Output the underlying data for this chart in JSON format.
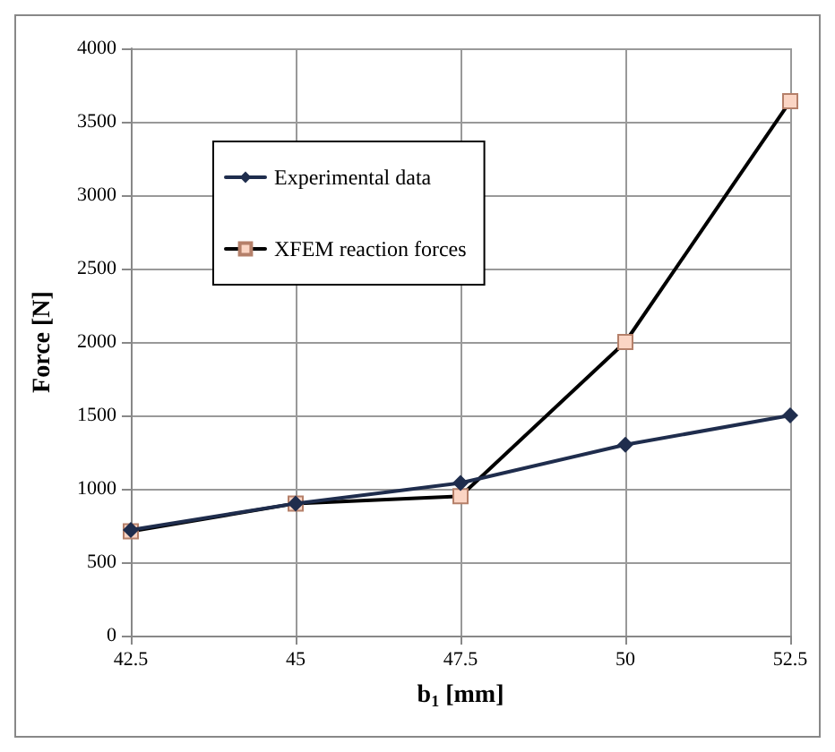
{
  "chart_data": {
    "type": "line",
    "xlabel": "b$_{1}$ [mm]",
    "ylabel": "Force [N]",
    "x": [
      42.5,
      45,
      47.5,
      50,
      52.5
    ],
    "series": [
      {
        "name": "Experimental data",
        "color": "#1f2d4d",
        "marker": "diamond",
        "values": [
          720,
          900,
          1040,
          1300,
          1500
        ]
      },
      {
        "name": "XFEM reaction forces",
        "color": "#000000",
        "marker": "square",
        "values": [
          710,
          900,
          950,
          2000,
          3640
        ]
      }
    ],
    "xlim": [
      42.5,
      52.5
    ],
    "xticks": [
      42.5,
      45,
      47.5,
      50,
      52.5
    ],
    "ylim": [
      0,
      4000
    ],
    "yticks": [
      0,
      500,
      1000,
      1500,
      2000,
      2500,
      3000,
      3500,
      4000
    ],
    "grid": true,
    "legend": "top left",
    "line_style": "solid"
  }
}
